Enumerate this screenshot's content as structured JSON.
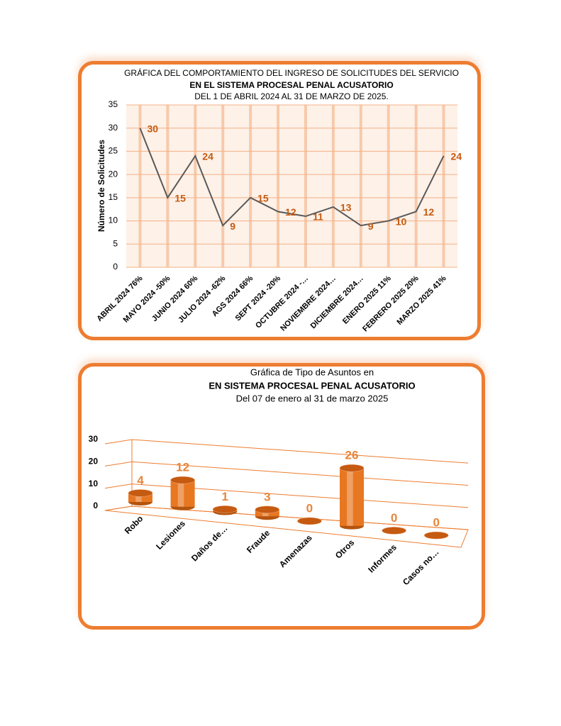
{
  "chart_data": [
    {
      "type": "line",
      "title_lines": [
        "GRÁFICA DEL COMPORTAMIENTO DEL INGRESO DE SOLICITUDES DEL SERVICIO",
        "EN EL SISTEMA PROCESAL PENAL ACUSATORIO",
        "DEL  1 DE ABRIL 2024  AL  31  DE  MARZO DE 2025."
      ],
      "y_label": "Número de Solicitudes",
      "categories": [
        "ABRIL  2024  76%",
        "MAYO  2024  -50%",
        "JUNIO  2024  60%",
        "JULIO  2024  -62%",
        "AGS  2024  66%",
        "SEPT  2024  -20%",
        "OCTUBRE  2024   -…",
        "NOVIEMBRE  2024…",
        "DICIEMBRE  2024…",
        "ENERO 2025  11%",
        "FEBRERO 2025  20%",
        "MARZO 2025   41%"
      ],
      "values": [
        30,
        15,
        24,
        9,
        15,
        12,
        11,
        13,
        9,
        10,
        12,
        24
      ],
      "color": "#595959",
      "label_color": "#c55a11",
      "ylim": [
        0,
        35
      ],
      "yticks": [
        0,
        5,
        10,
        15,
        20,
        25,
        30,
        35
      ],
      "grid": true
    },
    {
      "type": "cylinder",
      "title_lines": [
        "Gráfica de Tipo de Asuntos en",
        "EN  SISTEMA  PROCESAL  PENAL  ACUSATORIO",
        "Del  07  de enero al  31 de marzo  2025"
      ],
      "categories": [
        "Robo",
        "Lesiones",
        "Daños de…",
        "Fraude",
        "Amenazas",
        "Otros",
        "Informes",
        "Casos no…"
      ],
      "values": [
        4,
        12,
        1,
        3,
        0,
        26,
        0,
        0
      ],
      "color": "#e87722",
      "label_color": "#e8853a",
      "ylim": [
        0,
        30
      ],
      "yticks": [
        0,
        10,
        20,
        30
      ],
      "grid": true
    }
  ]
}
